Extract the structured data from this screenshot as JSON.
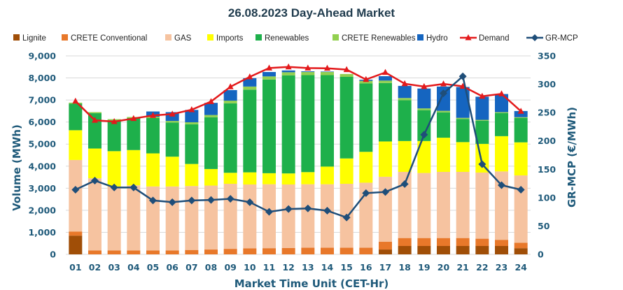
{
  "chart_data": {
    "type": "bar",
    "stacked": true,
    "title": "26.08.2023  Day-Ahead Market",
    "xlabel": "Market Time Unit (CET-Hr)",
    "ylabel": "Volume (MWh)",
    "y2label": "GR-MCP (€/MWh)",
    "ylim": [
      0,
      9000
    ],
    "yticks": [
      0,
      1000,
      2000,
      3000,
      4000,
      5000,
      6000,
      7000,
      8000,
      9000
    ],
    "y2lim": [
      0,
      350
    ],
    "y2ticks": [
      0,
      50,
      100,
      150,
      200,
      250,
      300,
      350
    ],
    "categories": [
      "01",
      "02",
      "03",
      "04",
      "05",
      "06",
      "07",
      "08",
      "09",
      "10",
      "11",
      "12",
      "13",
      "14",
      "15",
      "16",
      "17",
      "18",
      "19",
      "20",
      "21",
      "22",
      "23",
      "24"
    ],
    "series": [
      {
        "name": "Lignite",
        "color": "#a04e07",
        "values": [
          850,
          0,
          0,
          0,
          0,
          0,
          0,
          0,
          0,
          0,
          0,
          0,
          0,
          0,
          0,
          0,
          220,
          380,
          380,
          380,
          380,
          380,
          380,
          280
        ]
      },
      {
        "name": "CRETE Conventional",
        "color": "#e8782a",
        "values": [
          180,
          180,
          180,
          180,
          180,
          180,
          200,
          220,
          250,
          270,
          280,
          290,
          300,
          300,
          300,
          300,
          350,
          360,
          360,
          360,
          360,
          330,
          280,
          250
        ]
      },
      {
        "name": "GAS",
        "color": "#f6c3a0",
        "values": [
          3250,
          3270,
          2900,
          2950,
          2900,
          2900,
          2900,
          2900,
          2950,
          2900,
          2900,
          2880,
          2880,
          2880,
          2900,
          2950,
          2950,
          3000,
          2950,
          3000,
          3000,
          3000,
          3100,
          3050
        ]
      },
      {
        "name": "Imports",
        "color": "#ffff00",
        "values": [
          1350,
          1350,
          1600,
          1600,
          1500,
          1350,
          1000,
          750,
          500,
          550,
          500,
          500,
          550,
          800,
          1150,
          1400,
          1600,
          1400,
          1450,
          1550,
          1350,
          1300,
          1600,
          1500
        ]
      },
      {
        "name": "Renewables",
        "color": "#1eb04b",
        "values": [
          1200,
          1600,
          1400,
          1450,
          1600,
          1550,
          1800,
          2350,
          3150,
          3750,
          4250,
          4450,
          4400,
          4150,
          3700,
          3100,
          2650,
          1850,
          1400,
          1150,
          1050,
          1050,
          1050,
          1100
        ]
      },
      {
        "name": "CRETE Renewables",
        "color": "#92d050",
        "values": [
          50,
          50,
          50,
          50,
          60,
          70,
          90,
          100,
          120,
          140,
          140,
          140,
          140,
          140,
          130,
          120,
          110,
          100,
          80,
          70,
          50,
          40,
          40,
          40
        ]
      },
      {
        "name": "Hydro",
        "color": "#1565c0",
        "values": [
          0,
          0,
          0,
          0,
          240,
          400,
          560,
          550,
          480,
          380,
          200,
          80,
          30,
          20,
          0,
          50,
          200,
          550,
          900,
          1100,
          1400,
          1050,
          820,
          280
        ]
      }
    ],
    "lines": [
      {
        "name": "Demand",
        "color": "#e31a1c",
        "marker": "triangle",
        "axis": "left",
        "values": [
          6950,
          6080,
          6020,
          6160,
          6300,
          6360,
          6560,
          6930,
          7600,
          8050,
          8450,
          8500,
          8450,
          8440,
          8380,
          7930,
          8250,
          7740,
          7610,
          7730,
          7620,
          7170,
          7280,
          6490
        ]
      },
      {
        "name": "GR-MCP",
        "color": "#1f4e79",
        "marker": "diamond",
        "axis": "right",
        "values": [
          114,
          130,
          118,
          118,
          95,
          92,
          95,
          96,
          98,
          92,
          75,
          80,
          81,
          77,
          65,
          108,
          110,
          124,
          211,
          284,
          314,
          159,
          122,
          114
        ]
      }
    ],
    "legend_position": "top"
  }
}
